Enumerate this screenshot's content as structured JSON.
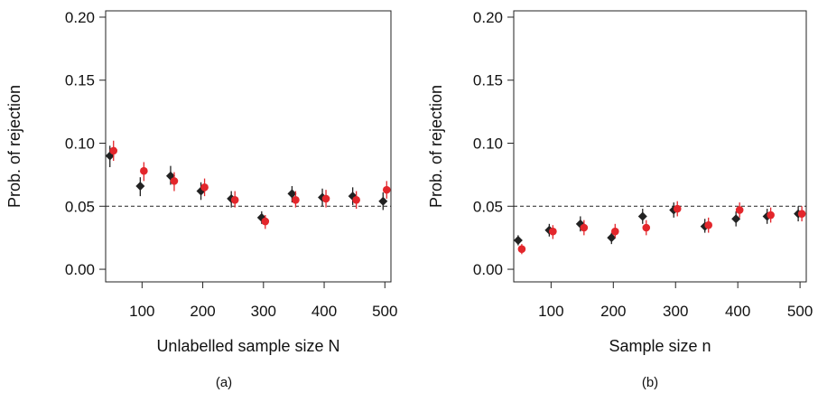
{
  "chart_data": [
    {
      "type": "scatter",
      "panel_label": "(a)",
      "xlabel": "Unlabelled sample size N",
      "ylabel": "Prob. of rejection",
      "xlim": [
        40,
        510
      ],
      "ylim": [
        -0.01,
        0.205
      ],
      "x_ticks": [
        100,
        200,
        300,
        400,
        500
      ],
      "y_ticks": [
        0.0,
        0.05,
        0.1,
        0.15,
        0.2
      ],
      "x_tick_labels": [
        "100",
        "200",
        "300",
        "400",
        "500"
      ],
      "y_tick_labels": [
        "0.00",
        "0.05",
        "0.10",
        "0.15",
        "0.20"
      ],
      "reference_line": {
        "y": 0.05,
        "style": "dashed"
      },
      "grid": false,
      "x": [
        50,
        100,
        150,
        200,
        250,
        300,
        350,
        400,
        450,
        500
      ],
      "series": [
        {
          "marker": "diamond",
          "color": "#222222",
          "values": [
            0.09,
            0.066,
            0.074,
            0.062,
            0.056,
            0.041,
            0.06,
            0.057,
            0.058,
            0.054
          ],
          "err_low": [
            0.081,
            0.058,
            0.067,
            0.055,
            0.049,
            0.036,
            0.053,
            0.05,
            0.051,
            0.047
          ],
          "err_high": [
            0.098,
            0.073,
            0.082,
            0.069,
            0.062,
            0.046,
            0.066,
            0.064,
            0.065,
            0.061
          ]
        },
        {
          "marker": "circle",
          "color": "#e3262b",
          "values": [
            0.094,
            0.078,
            0.07,
            0.065,
            0.055,
            0.038,
            0.055,
            0.056,
            0.055,
            0.063
          ],
          "err_low": [
            0.086,
            0.07,
            0.062,
            0.058,
            0.049,
            0.032,
            0.049,
            0.049,
            0.048,
            0.056
          ],
          "err_high": [
            0.102,
            0.085,
            0.077,
            0.072,
            0.062,
            0.043,
            0.062,
            0.063,
            0.062,
            0.07
          ]
        }
      ]
    },
    {
      "type": "scatter",
      "panel_label": "(b)",
      "xlabel": "Sample size n",
      "ylabel": "Prob. of rejection",
      "xlim": [
        40,
        510
      ],
      "ylim": [
        -0.01,
        0.205
      ],
      "x_ticks": [
        100,
        200,
        300,
        400,
        500
      ],
      "y_ticks": [
        0.0,
        0.05,
        0.1,
        0.15,
        0.2
      ],
      "x_tick_labels": [
        "100",
        "200",
        "300",
        "400",
        "500"
      ],
      "y_tick_labels": [
        "0.00",
        "0.05",
        "0.10",
        "0.15",
        "0.20"
      ],
      "reference_line": {
        "y": 0.05,
        "style": "dashed"
      },
      "grid": false,
      "x": [
        50,
        100,
        150,
        200,
        250,
        300,
        350,
        400,
        450,
        500
      ],
      "series": [
        {
          "marker": "diamond",
          "color": "#222222",
          "values": [
            0.023,
            0.031,
            0.036,
            0.025,
            0.042,
            0.047,
            0.034,
            0.04,
            0.042,
            0.044
          ],
          "err_low": [
            0.019,
            0.026,
            0.03,
            0.02,
            0.036,
            0.041,
            0.029,
            0.034,
            0.036,
            0.038
          ],
          "err_high": [
            0.027,
            0.036,
            0.042,
            0.029,
            0.048,
            0.053,
            0.04,
            0.046,
            0.048,
            0.05
          ]
        },
        {
          "marker": "circle",
          "color": "#e3262b",
          "values": [
            0.016,
            0.03,
            0.033,
            0.03,
            0.033,
            0.048,
            0.035,
            0.047,
            0.043,
            0.044
          ],
          "err_low": [
            0.012,
            0.024,
            0.027,
            0.025,
            0.027,
            0.042,
            0.029,
            0.041,
            0.037,
            0.038
          ],
          "err_high": [
            0.02,
            0.035,
            0.039,
            0.036,
            0.039,
            0.054,
            0.041,
            0.053,
            0.049,
            0.05
          ]
        }
      ]
    }
  ]
}
